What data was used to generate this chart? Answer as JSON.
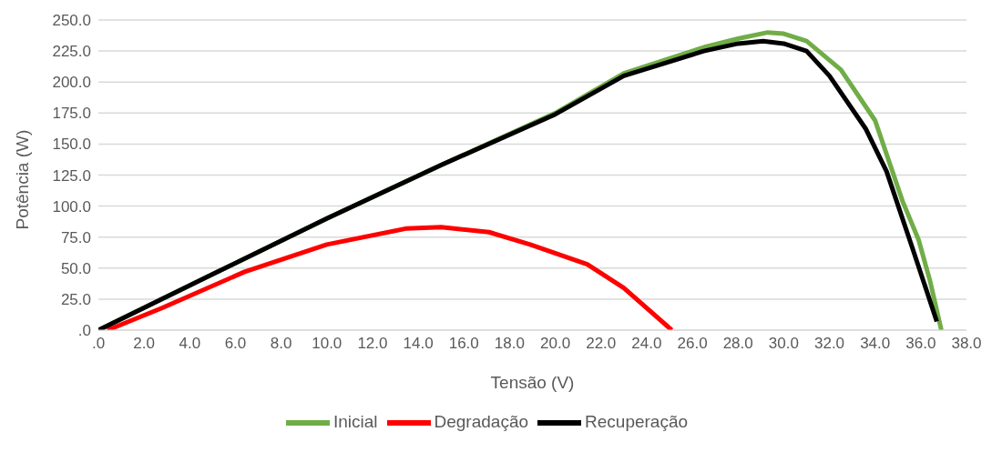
{
  "chart_data": {
    "type": "line",
    "xlabel": "Tensão (V)",
    "ylabel": "Potência (W)",
    "xlim": [
      0,
      38
    ],
    "xticks": [
      {
        "value": 0,
        "label": ".0"
      },
      {
        "value": 2,
        "label": "2.0"
      },
      {
        "value": 4,
        "label": "4.0"
      },
      {
        "value": 6,
        "label": "6.0"
      },
      {
        "value": 8,
        "label": "8.0"
      },
      {
        "value": 10,
        "label": "10.0"
      },
      {
        "value": 12,
        "label": "12.0"
      },
      {
        "value": 14,
        "label": "14.0"
      },
      {
        "value": 16,
        "label": "16.0"
      },
      {
        "value": 18,
        "label": "18.0"
      },
      {
        "value": 20,
        "label": "20.0"
      },
      {
        "value": 22,
        "label": "22.0"
      },
      {
        "value": 24,
        "label": "24.0"
      },
      {
        "value": 26,
        "label": "26.0"
      },
      {
        "value": 28,
        "label": "28.0"
      },
      {
        "value": 30,
        "label": "30.0"
      },
      {
        "value": 32,
        "label": "32.0"
      },
      {
        "value": 34,
        "label": "34.0"
      },
      {
        "value": 36,
        "label": "36.0"
      },
      {
        "value": 38,
        "label": "38.0"
      }
    ],
    "ylim": [
      0,
      250
    ],
    "yticks": [
      {
        "value": 0,
        "label": ".0"
      },
      {
        "value": 25,
        "label": "25.0"
      },
      {
        "value": 50,
        "label": "50.0"
      },
      {
        "value": 75,
        "label": "75.0"
      },
      {
        "value": 100,
        "label": "100.0"
      },
      {
        "value": 125,
        "label": "125.0"
      },
      {
        "value": 150,
        "label": "150.0"
      },
      {
        "value": 175,
        "label": "175.0"
      },
      {
        "value": 200,
        "label": "200.0"
      },
      {
        "value": 225,
        "label": "225.0"
      },
      {
        "value": 250,
        "label": "250.0"
      }
    ],
    "grid": "y",
    "legend": "bottom",
    "marker": "none",
    "line_style": "solid",
    "series": [
      {
        "name": "Inicial",
        "color": "#70ad47",
        "x": [
          0,
          5,
          10,
          15,
          20,
          23,
          26.5,
          28,
          29.3,
          30,
          31,
          32.5,
          34,
          35.2,
          35.9,
          36.4,
          36.9
        ],
        "values": [
          0,
          45,
          90,
          133,
          175,
          207,
          228,
          235,
          240,
          239,
          233,
          210,
          169,
          104,
          73,
          40,
          0
        ]
      },
      {
        "name": "Degradação",
        "color": "#ff0000",
        "x": [
          0.4,
          2.8,
          6.4,
          10,
          13.5,
          15,
          17.1,
          18.9,
          21.4,
          23,
          25.1
        ],
        "values": [
          0,
          18,
          47,
          69,
          82,
          83,
          79,
          69,
          53,
          34,
          0
        ]
      },
      {
        "name": "Recuperação",
        "color": "#000000",
        "x": [
          0,
          5,
          10,
          15,
          20,
          23,
          26.5,
          28,
          29.1,
          30,
          31,
          32,
          33.6,
          34.5,
          35.6,
          36.7
        ],
        "values": [
          0,
          45,
          90,
          133,
          174,
          205,
          225,
          231,
          233,
          231,
          225,
          205,
          162,
          128,
          68,
          7
        ]
      }
    ]
  }
}
